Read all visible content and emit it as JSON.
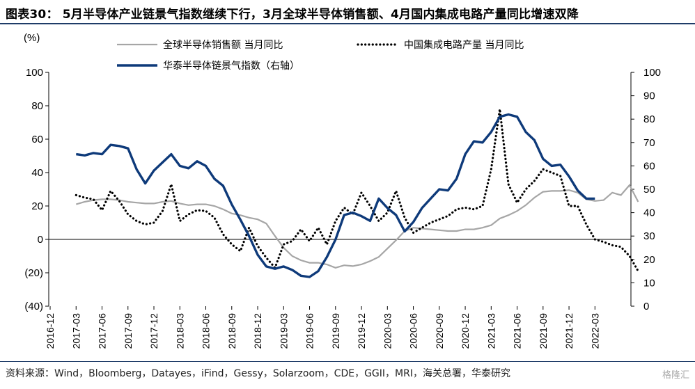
{
  "header": {
    "title": "图表30：  5月半导体产业链景气指数继续下行，3月全球半导体销售额、4月国内集成电路产量同比增速双降"
  },
  "footer": {
    "source": "资料来源：Wind，Bloomberg，Datayes，iFind，Gessy，Solarzoom，CDE，GGII，MRI，海关总署，华泰研究",
    "watermark": "格隆汇"
  },
  "colors": {
    "gray_series": "#a6a6a6",
    "dotted_series": "#000000",
    "blue_series": "#0e3a7a",
    "rule": "#1f3c68"
  },
  "chart_data": {
    "type": "line",
    "ylabel": "(%)",
    "y_left_ticks": [
      "100",
      "80",
      "60",
      "40",
      "20",
      "0",
      "(20)",
      "(40)"
    ],
    "y_right_ticks": [
      "100",
      "90",
      "80",
      "70",
      "60",
      "50",
      "40",
      "30",
      "20",
      "10",
      "0"
    ],
    "y_left_lim": [
      -40,
      100
    ],
    "y_right_lim": [
      0,
      100
    ],
    "x_tick_labels": [
      "2016-12",
      "2017-03",
      "2017-06",
      "2017-09",
      "2017-12",
      "2018-03",
      "2018-06",
      "2018-09",
      "2018-12",
      "2019-03",
      "2019-06",
      "2019-09",
      "2019-12",
      "2020-03",
      "2020-06",
      "2020-09",
      "2020-12",
      "2021-03",
      "2021-06",
      "2021-09",
      "2021-12",
      "2022-03"
    ],
    "legend_position": "top",
    "series": [
      {
        "name": "全球半导体销售额 当月同比",
        "axis": "left",
        "style": "solid-gray",
        "start": "2017-03",
        "values": [
          21,
          22.5,
          23.5,
          24,
          24,
          23.5,
          22.5,
          22,
          21.5,
          21.5,
          22.5,
          23,
          21.5,
          20.5,
          21,
          21,
          20,
          18,
          15.5,
          14.5,
          13,
          12,
          9.5,
          2,
          -5,
          -10,
          -12.5,
          -14,
          -14,
          -15,
          -17,
          -15.5,
          -16,
          -15,
          -13,
          -10.5,
          -5.5,
          -0.5,
          5,
          7,
          6.5,
          6,
          5.5,
          5,
          5,
          6,
          6,
          7,
          8.5,
          12.5,
          14.5,
          17,
          20.5,
          25,
          28.5,
          29,
          29,
          29.5,
          28,
          24,
          23,
          23.5,
          28,
          26.5,
          32.5,
          22.5
        ]
      },
      {
        "name": "中国集成电路产量 当月同比",
        "axis": "left",
        "style": "dotted-black",
        "start": "2017-03",
        "values": [
          26.5,
          25,
          24,
          17.5,
          29,
          23,
          15,
          11,
          9,
          10,
          17,
          33,
          11,
          15,
          17.5,
          17,
          13,
          3,
          -3,
          -7,
          7,
          -4,
          -11,
          -17,
          -3,
          -1,
          6,
          -1,
          7,
          -3,
          11,
          19,
          15,
          28,
          20,
          11,
          16,
          29,
          13,
          4,
          7,
          10,
          12,
          14,
          18,
          19,
          18,
          20,
          42,
          78,
          33,
          22,
          30,
          35,
          42,
          40,
          38,
          20,
          20,
          9,
          0,
          -1.5,
          -3.5,
          -4.5,
          -10,
          -19
        ]
      },
      {
        "name": "华泰半导体链景气指数（右轴）",
        "axis": "right",
        "style": "solid-blue",
        "start": "2017-03",
        "values": [
          65,
          64.5,
          65.5,
          65,
          69,
          68.5,
          67.5,
          58.5,
          52.5,
          58,
          61.5,
          65,
          60,
          59,
          62,
          60,
          54.5,
          51.5,
          43.5,
          37,
          30,
          22,
          17,
          16,
          17,
          15.5,
          13,
          12.5,
          15,
          21,
          28.5,
          39,
          40,
          38.5,
          36.5,
          46,
          42,
          39,
          32,
          36,
          42,
          46,
          50,
          49.5,
          54.5,
          65,
          70.5,
          70,
          74.5,
          81,
          82,
          81,
          74.5,
          71,
          63,
          60,
          60.5,
          55.5,
          49.5,
          46,
          46
        ]
      }
    ]
  }
}
